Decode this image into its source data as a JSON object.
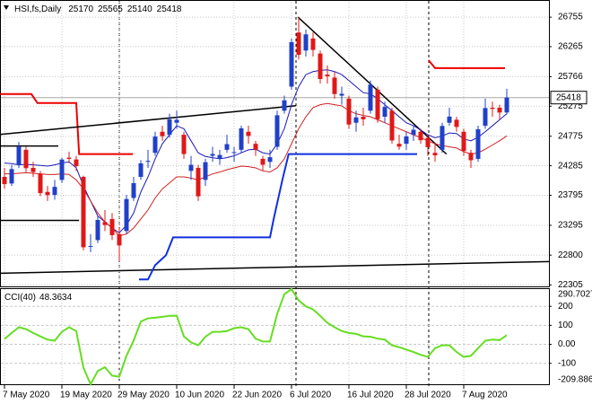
{
  "chart_data": [
    {
      "type": "candlestick",
      "title": "HSI,fs,Daily",
      "categories": [
        "7 May 2020",
        null,
        null,
        null,
        null,
        null,
        null,
        null,
        "19 May 2020",
        null,
        null,
        null,
        null,
        null,
        null,
        null,
        "29 May 2020",
        null,
        null,
        null,
        null,
        null,
        null,
        null,
        "10 Jun 2020",
        null,
        null,
        null,
        null,
        null,
        null,
        null,
        "22 Jun 2020",
        null,
        null,
        null,
        null,
        null,
        null,
        null,
        "6 Jul 2020",
        null,
        null,
        null,
        null,
        null,
        null,
        null,
        "16 Jul 2020",
        null,
        null,
        null,
        null,
        null,
        null,
        null,
        "28 Jul 2020",
        null,
        null,
        null,
        null,
        null,
        null,
        null,
        "7 Aug 2020",
        null,
        null,
        null,
        null,
        null,
        null
      ],
      "open": [
        24100,
        23990,
        24300,
        24550,
        24250,
        24150,
        23850,
        23800,
        24050,
        24420,
        24390,
        24100,
        22950,
        23050,
        23350,
        23400,
        23150,
        23200,
        23750,
        24100,
        24350,
        24500,
        24850,
        24800,
        25000,
        24800,
        24200,
        24250,
        24050,
        24450,
        24400,
        24550,
        24500,
        24550,
        24850,
        24650,
        24400,
        24350,
        24600,
        25200,
        25600,
        26500,
        26200,
        26400,
        26150,
        25800,
        25750,
        25450,
        25400,
        25000,
        25100,
        25200,
        25550,
        25100,
        25200,
        24650,
        24650,
        24800,
        24850,
        24750,
        24500,
        24550,
        25000,
        25050,
        24850,
        24500,
        24400,
        24950,
        25250,
        25250,
        25170
      ],
      "high": [
        24250,
        24300,
        24680,
        24600,
        24350,
        24200,
        23950,
        24050,
        24420,
        24520,
        24450,
        24120,
        23150,
        23450,
        23550,
        23500,
        23250,
        23800,
        24100,
        24380,
        24550,
        24850,
        24950,
        25150,
        25200,
        24850,
        24450,
        24300,
        24400,
        24600,
        24550,
        24800,
        24600,
        24950,
        24950,
        24700,
        24450,
        24550,
        25200,
        25450,
        26400,
        26750,
        26550,
        26500,
        26200,
        25950,
        25850,
        25600,
        25450,
        25200,
        25250,
        25700,
        25600,
        25350,
        25250,
        24800,
        24850,
        24950,
        24900,
        24800,
        24650,
        25000,
        25250,
        25100,
        24900,
        24550,
        24950,
        25400,
        25350,
        25300,
        25565
      ],
      "low": [
        23900,
        23950,
        24250,
        24180,
        24100,
        23780,
        23700,
        23720,
        24000,
        24330,
        24200,
        22880,
        22850,
        23000,
        23200,
        23050,
        22700,
        23150,
        23700,
        24050,
        24250,
        24450,
        24700,
        24750,
        24900,
        24400,
        24050,
        23700,
        23950,
        24350,
        24300,
        24500,
        24350,
        24500,
        24650,
        24450,
        24200,
        24250,
        24550,
        25150,
        25550,
        26050,
        26100,
        26100,
        25650,
        25650,
        25400,
        25300,
        24900,
        24850,
        24950,
        25150,
        25000,
        25000,
        24650,
        24550,
        24550,
        24700,
        24650,
        24450,
        24350,
        24500,
        24950,
        24850,
        24450,
        24250,
        24350,
        24900,
        25100,
        25050,
        25140
      ],
      "close": [
        23980,
        24230,
        24602,
        24245,
        24180,
        23830,
        23797,
        23934,
        24388,
        24400,
        24280,
        22930,
        22952,
        23384,
        23301,
        23132,
        22961,
        23732,
        23996,
        24325,
        24366,
        24770,
        24776,
        25057,
        25049,
        24480,
        24301,
        23777,
        24344,
        24481,
        24464,
        24644,
        24511,
        24907,
        24781,
        24549,
        24301,
        24427,
        25124,
        25373,
        26339,
        26129,
        26469,
        26210,
        25727,
        25772,
        25477,
        25481,
        24970,
        25089,
        25057,
        25635,
        25058,
        25263,
        24705,
        24603,
        24772,
        24883,
        24710,
        24595,
        24458,
        24946,
        25102,
        24930,
        24531,
        24377,
        24891,
        25244,
        25230,
        25170,
        25418
      ],
      "up_color": "#2040c8",
      "down_color": "#e01818",
      "series": [
        {
          "color": "#1a1ab8",
          "values": [
            24330,
            24320,
            24300,
            24310,
            24300,
            24290,
            24280,
            24300,
            24330,
            24350,
            24250,
            23950,
            23700,
            23450,
            23350,
            23250,
            23170,
            23300,
            23500,
            23850,
            24100,
            24400,
            24650,
            24800,
            24950,
            24900,
            24700,
            24500,
            24440,
            24420,
            24400,
            24420,
            24450,
            24500,
            24550,
            24560,
            24500,
            24480,
            24650,
            24900,
            25300,
            25600,
            25800,
            25850,
            25870,
            25880,
            25850,
            25800,
            25700,
            25600,
            25500,
            25480,
            25400,
            25300,
            25200,
            25100,
            25000,
            24950,
            24880,
            24800,
            24750,
            24780,
            24830,
            24820,
            24730,
            24700,
            24760,
            24850,
            24950,
            25050,
            25150
          ]
        },
        {
          "color": "#d02020",
          "values": [
            24150,
            24150,
            24160,
            24170,
            24160,
            24150,
            24140,
            24140,
            24150,
            24140,
            24050,
            23900,
            23700,
            23500,
            23350,
            23250,
            23120,
            23150,
            23250,
            23400,
            23550,
            23750,
            23900,
            24000,
            24100,
            24100,
            24080,
            24050,
            24100,
            24150,
            24180,
            24220,
            24250,
            24280,
            24270,
            24250,
            24200,
            24180,
            24250,
            24400,
            24650,
            24900,
            25100,
            25250,
            25300,
            25320,
            25300,
            25280,
            25200,
            25150,
            25120,
            25100,
            25050,
            25000,
            24950,
            24900,
            24850,
            24800,
            24750,
            24700,
            24650,
            24620,
            24600,
            24580,
            24520,
            24480,
            24500,
            24560,
            24630,
            24700,
            24780
          ]
        }
      ],
      "drawings": [
        {
          "color": "#ee0000",
          "width": 2,
          "x": [
            -0.6,
            3.75,
            4.6,
            10,
            10.4,
            17.9
          ],
          "y": [
            25476,
            25476,
            25327,
            25327,
            24479,
            24479
          ]
        },
        {
          "color": "#ee0000",
          "width": 2,
          "x": [
            59.1,
            60,
            69.75
          ],
          "y": [
            26041,
            25907,
            25907
          ]
        },
        {
          "color": "#000000",
          "width": 1.5,
          "x": [
            -0.6,
            7.5
          ],
          "y": [
            24613,
            24613
          ]
        },
        {
          "color": "#000000",
          "width": 1.5,
          "x": [
            -0.6,
            10.4
          ],
          "y": [
            23377,
            23377
          ]
        },
        {
          "color": "#000000",
          "width": 1.5,
          "x": [
            -0.6,
            40.6
          ],
          "y": [
            24806,
            25282
          ]
        },
        {
          "color": "#000000",
          "width": 1.5,
          "x": [
            -0.6,
            75.9
          ],
          "y": [
            22499,
            22693
          ]
        },
        {
          "color": "#000000",
          "width": 1.5,
          "x": [
            40.9,
            61.6
          ],
          "y": [
            26755,
            24479
          ]
        },
        {
          "color": "#1030e0",
          "width": 2,
          "x": [
            18.75,
            20,
            21,
            22.5,
            23.5,
            37,
            37.5,
            38.75,
            39.6,
            57.5
          ],
          "y": [
            22395,
            22395,
            22633,
            22797,
            23095,
            23095,
            23392,
            24062,
            24479,
            24479
          ]
        }
      ],
      "ylim": [
        22280,
        27010
      ],
      "yticks": [
        22305,
        22800,
        23295,
        23795,
        24285,
        24775,
        25275,
        25766,
        26265,
        26755
      ],
      "grid": true
    },
    {
      "type": "line",
      "title": "CCI(40)",
      "series": [
        {
          "color": "#66dd22",
          "values": [
            28,
            60,
            90,
            80,
            60,
            42,
            25,
            19,
            66,
            90,
            70,
            -123,
            -209.886,
            -140,
            -120,
            -165,
            -170,
            -60,
            20,
            120,
            137,
            140,
            145,
            150,
            151,
            42,
            10,
            -5,
            40,
            66,
            66,
            70,
            85,
            90,
            80,
            30,
            15,
            15,
            160,
            264,
            290.7027,
            231,
            200,
            184,
            150,
            113,
            90,
            70,
            60,
            55,
            42,
            40,
            30,
            25,
            -5,
            -15,
            -28,
            -40,
            -55,
            -66,
            -20,
            -5,
            -5,
            -40,
            -66,
            -60,
            -20,
            19,
            25,
            22,
            48.3634
          ]
        }
      ],
      "ylim": [
        -209.886,
        290.7027
      ],
      "yticks": [
        200,
        100,
        {
          "value": 0,
          "label": "0.00"
        },
        -100
      ]
    }
  ]
}
